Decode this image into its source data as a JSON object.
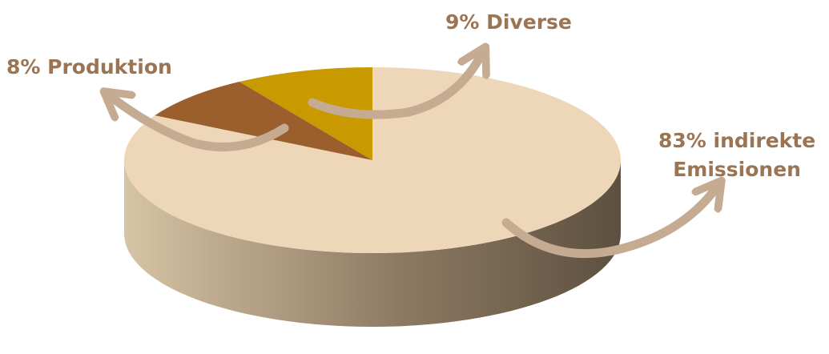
{
  "chart_data": {
    "type": "pie",
    "title": "",
    "slices": [
      {
        "label": "indirekte Emissionen",
        "value": 83,
        "color": "#eed7b8"
      },
      {
        "label": "Produktion",
        "value": 8,
        "color": "#9b5f2e"
      },
      {
        "label": "Diverse",
        "value": 9,
        "color": "#c99a00"
      }
    ],
    "labels": {
      "produktion": "8% Produktion",
      "diverse": "9% Diverse",
      "indirekte_line1": "83% indirekte",
      "indirekte_line2": "Emissionen"
    },
    "side_colors": [
      "#d6c4a6",
      "#8e7a62",
      "#5d5040"
    ],
    "arrow_color": "#c4ab92",
    "label_color": "#9a7453",
    "style": "3d"
  }
}
